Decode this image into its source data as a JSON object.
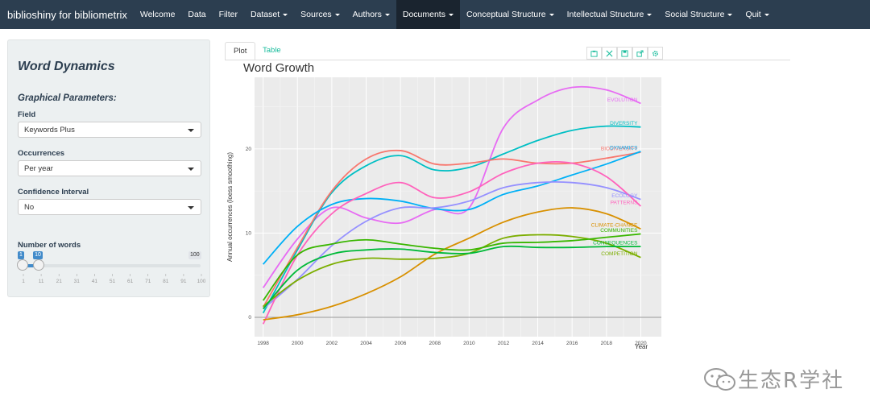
{
  "navbar": {
    "brand": "biblioshiny for bibliometrix",
    "items": [
      {
        "label": "Welcome",
        "dropdown": false
      },
      {
        "label": "Data",
        "dropdown": false
      },
      {
        "label": "Filter",
        "dropdown": false
      },
      {
        "label": "Dataset",
        "dropdown": true
      },
      {
        "label": "Sources",
        "dropdown": true
      },
      {
        "label": "Authors",
        "dropdown": true
      },
      {
        "label": "Documents",
        "dropdown": true,
        "active": true
      },
      {
        "label": "Conceptual Structure",
        "dropdown": true
      },
      {
        "label": "Intellectual Structure",
        "dropdown": true
      },
      {
        "label": "Social Structure",
        "dropdown": true
      },
      {
        "label": "Quit",
        "dropdown": true
      }
    ]
  },
  "sidebar": {
    "title": "Word Dynamics",
    "subtitle": "Graphical Parameters:",
    "field": {
      "label": "Field",
      "value": "Keywords Plus"
    },
    "occurrences": {
      "label": "Occurrences",
      "value": "Per year"
    },
    "confidence": {
      "label": "Confidence Interval",
      "value": "No"
    },
    "words_slider": {
      "label": "Number of words",
      "min": 1,
      "max": 100,
      "from": 1,
      "to": 10,
      "min_label": "1",
      "max_label": "100",
      "from_label": "1",
      "to_label": "10",
      "ticks": [
        "1",
        "11",
        "21",
        "31",
        "41",
        "51",
        "61",
        "71",
        "81",
        "91",
        "100"
      ]
    }
  },
  "tabs": {
    "plot": "Plot",
    "table": "Table"
  },
  "toolbar_icons": [
    "camera-icon",
    "zoom-icon",
    "save-icon",
    "export-icon",
    "settings-icon"
  ],
  "colors": {
    "navbar": "#2c3e50",
    "accent": "#18bc9c",
    "slider": "#428bca"
  },
  "watermark": "生态R学社",
  "chart_data": {
    "type": "line",
    "title": "Word Growth",
    "xlabel": "Year",
    "ylabel": "Annual occurrences (loess smoothing)",
    "x": [
      1998,
      2000,
      2002,
      2004,
      2006,
      2008,
      2010,
      2012,
      2014,
      2016,
      2018,
      2020
    ],
    "xticks": [
      "1998",
      "2000",
      "2002",
      "2004",
      "2006",
      "2008",
      "2010",
      "2012",
      "2014",
      "2016",
      "2018",
      "2020"
    ],
    "yticks": [
      "0",
      "10",
      "20"
    ],
    "xlim": [
      1997.5,
      2021.2
    ],
    "ylim": [
      -2.3,
      28.5
    ],
    "grid": true,
    "series": [
      {
        "name": "EVOLUTION",
        "color": "#e76bf3",
        "values": [
          3.5,
          9.3,
          13.0,
          11.8,
          11.2,
          12.8,
          13.0,
          22.5,
          25.8,
          27.3,
          27.0,
          25.4
        ]
      },
      {
        "name": "DIVERSITY",
        "color": "#00bfc4",
        "values": [
          0.5,
          8.0,
          14.8,
          18.0,
          19.2,
          17.5,
          17.8,
          19.4,
          21.0,
          22.2,
          22.7,
          22.6
        ]
      },
      {
        "name": "BIODIVERSITY",
        "color": "#f8766d",
        "values": [
          1.2,
          8.3,
          15.0,
          18.8,
          19.8,
          18.2,
          18.3,
          18.8,
          18.3,
          18.3,
          18.9,
          19.6
        ]
      },
      {
        "name": "DYNAMICS",
        "color": "#00b0f6",
        "values": [
          6.3,
          10.8,
          13.4,
          14.1,
          13.8,
          12.9,
          12.8,
          14.6,
          15.6,
          16.9,
          18.2,
          19.7
        ]
      },
      {
        "name": "ECOLOGY",
        "color": "#9590ff",
        "values": [
          1.0,
          4.5,
          8.5,
          11.4,
          13.0,
          13.0,
          13.8,
          15.4,
          16.0,
          16.0,
          15.4,
          14.0
        ]
      },
      {
        "name": "PATTERNS",
        "color": "#ff62bc",
        "values": [
          -0.8,
          7.4,
          12.3,
          14.7,
          16.0,
          14.2,
          14.9,
          17.1,
          18.3,
          18.3,
          16.7,
          13.2
        ]
      },
      {
        "name": "CLIMATE-CHANGE",
        "color": "#d89000",
        "values": [
          -0.3,
          0.3,
          1.3,
          2.8,
          4.8,
          7.5,
          9.4,
          11.3,
          12.5,
          13.0,
          12.3,
          10.5
        ]
      },
      {
        "name": "COMPETITION",
        "color": "#7cae00",
        "values": [
          1.3,
          4.4,
          6.3,
          7.0,
          6.9,
          7.0,
          7.6,
          9.4,
          9.8,
          9.6,
          8.8,
          7.1
        ]
      },
      {
        "name": "CONSEQUENCES",
        "color": "#00ba38",
        "values": [
          1.0,
          5.6,
          7.5,
          8.0,
          8.1,
          7.7,
          7.6,
          8.4,
          8.3,
          8.3,
          8.4,
          8.4
        ]
      },
      {
        "name": "COMMUNITIES",
        "color": "#39b600",
        "values": [
          2.0,
          7.4,
          8.7,
          9.2,
          8.7,
          8.2,
          8.0,
          8.8,
          8.9,
          9.1,
          9.5,
          9.9
        ]
      }
    ]
  }
}
